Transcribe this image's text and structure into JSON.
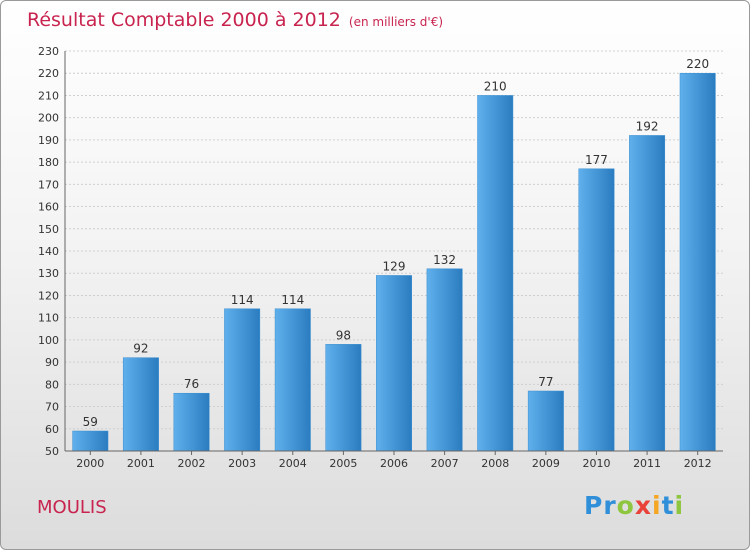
{
  "header": {
    "title": "Résultat Comptable 2000 à 2012",
    "subtitle": "(en milliers d'€)"
  },
  "footer": {
    "commune": "MOULIS",
    "logo_letters": [
      "P",
      "r",
      "o",
      "x",
      "i",
      "t",
      "i"
    ],
    "logo_colors": [
      "#2f8fd8",
      "#2f8fd8",
      "#8ec63f",
      "#e8423a",
      "#f5a623",
      "#2f8fd8",
      "#8ec63f"
    ]
  },
  "colors": {
    "bar_light": "#5fb0ec",
    "bar_dark": "#2a7cc0",
    "accent": "#c8244f"
  },
  "chart_data": {
    "type": "bar",
    "title": "Résultat Comptable 2000 à 2012",
    "categories": [
      "2000",
      "2001",
      "2002",
      "2003",
      "2004",
      "2005",
      "2006",
      "2007",
      "2008",
      "2009",
      "2010",
      "2011",
      "2012"
    ],
    "values": [
      59,
      92,
      76,
      114,
      114,
      98,
      129,
      132,
      210,
      77,
      177,
      192,
      220
    ],
    "xlabel": "",
    "ylabel": "",
    "ylim": [
      50,
      230
    ],
    "yticks": [
      50,
      60,
      70,
      80,
      90,
      100,
      110,
      120,
      130,
      140,
      150,
      160,
      170,
      180,
      190,
      200,
      210,
      220,
      230
    ],
    "grid": true
  }
}
